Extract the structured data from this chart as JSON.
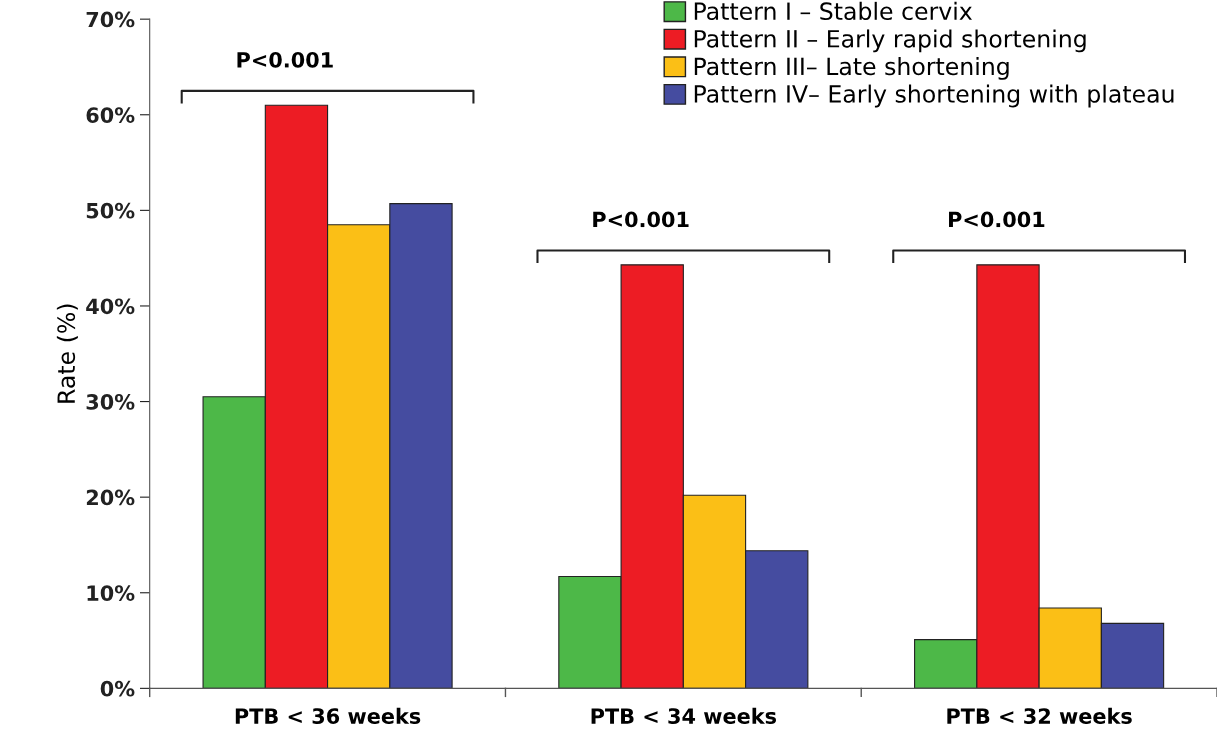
{
  "chart_data": {
    "type": "bar",
    "ylabel": "Rate (%)",
    "categories": [
      "PTB < 36 weeks",
      "PTB < 34 weeks",
      "PTB < 32 weeks"
    ],
    "series": [
      {
        "name": "Pattern I – Stable cervix",
        "color": "#4db848",
        "values": [
          30.5,
          11.7,
          5.1
        ]
      },
      {
        "name": "Pattern II – Early rapid shortening",
        "color": "#ed1c24",
        "values": [
          61.0,
          44.3,
          44.3
        ]
      },
      {
        "name": "Pattern III– Late shortening",
        "color": "#fbbf16",
        "values": [
          48.5,
          20.2,
          8.4
        ]
      },
      {
        "name": "Pattern IV– Early shortening with plateau",
        "color": "#454ca0",
        "values": [
          50.7,
          14.4,
          6.8
        ]
      }
    ],
    "ylim": [
      0,
      70
    ],
    "yticks": [
      {
        "value": 0,
        "label": "0%"
      },
      {
        "value": 10,
        "label": "10%"
      },
      {
        "value": 20,
        "label": "20%"
      },
      {
        "value": 30,
        "label": "30%"
      },
      {
        "value": 40,
        "label": "40%"
      },
      {
        "value": 50,
        "label": "50%"
      },
      {
        "value": 60,
        "label": "60%"
      },
      {
        "value": 70,
        "label": "70%"
      }
    ],
    "annotations": [
      "P<0.001",
      "P<0.001",
      "P<0.001"
    ],
    "legend": "top right",
    "grid": false
  }
}
